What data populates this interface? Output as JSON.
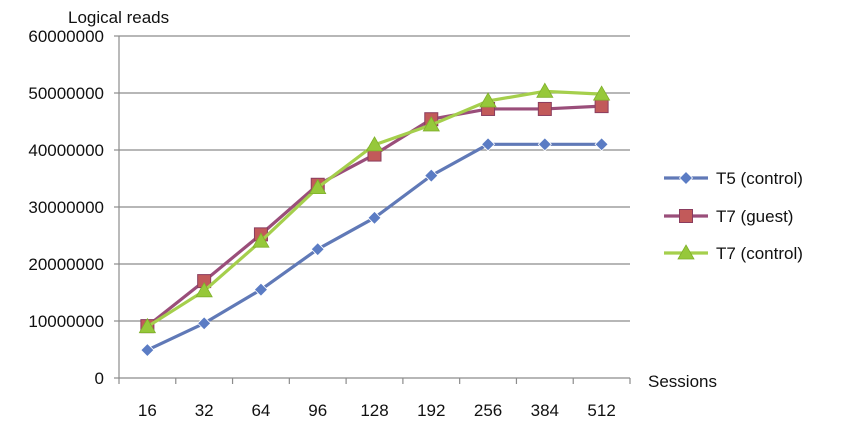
{
  "chart_data": {
    "type": "line",
    "ylabel": "Logical reads",
    "xlabel": "Sessions",
    "categories": [
      "16",
      "32",
      "64",
      "96",
      "128",
      "192",
      "256",
      "384",
      "512"
    ],
    "y_ticks": [
      "0",
      "10000000",
      "20000000",
      "30000000",
      "40000000",
      "50000000",
      "60000000"
    ],
    "ylim": [
      0,
      60000000
    ],
    "grid": "horizontal",
    "legend": "right",
    "series": [
      {
        "name": "T5 (control)",
        "marker": "diamond",
        "color": "#6079b7",
        "marker_color": "#5b7cc4",
        "values": [
          4900000,
          9600000,
          15500000,
          22600000,
          28100000,
          35500000,
          41000000,
          41000000,
          41000000
        ]
      },
      {
        "name": "T7 (guest)",
        "marker": "square",
        "color": "#9a4e7a",
        "marker_color": "#c25a5a",
        "values": [
          9100000,
          17000000,
          25200000,
          33900000,
          39200000,
          45400000,
          47200000,
          47200000,
          47700000
        ]
      },
      {
        "name": "T7 (control)",
        "marker": "triangle",
        "color": "#a5cf4c",
        "marker_color": "#96c83a",
        "values": [
          9000000,
          15300000,
          24000000,
          33400000,
          40900000,
          44400000,
          48600000,
          50300000,
          49800000
        ]
      }
    ]
  }
}
